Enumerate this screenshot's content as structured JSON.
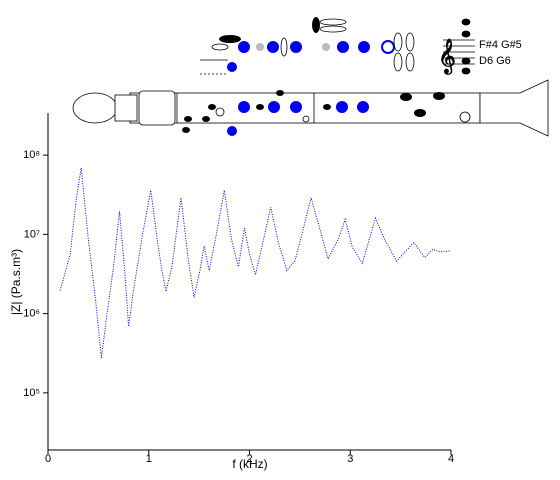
{
  "chart_data": {
    "type": "line",
    "x_label": "f (kHz)",
    "y_label": "|Z| (Pa.s.m³)",
    "annotations": [
      "F#4 G#5",
      "D6 G6"
    ],
    "log_y": true,
    "xlim": [
      0,
      4
    ],
    "xticks": [
      0,
      1,
      2,
      3,
      4
    ],
    "ylim": [
      19000,
      340000000
    ],
    "yticks": [
      {
        "value": 100000,
        "label": "10⁵"
      },
      {
        "value": 1000000,
        "label": "10⁶"
      },
      {
        "value": 10000000,
        "label": "10⁷"
      },
      {
        "value": 100000000,
        "label": "10⁸"
      }
    ],
    "x": [
      0.12,
      0.22,
      0.28,
      0.33,
      0.4,
      0.47,
      0.53,
      0.58,
      0.65,
      0.71,
      0.76,
      0.8,
      0.85,
      0.93,
      1.02,
      1.09,
      1.13,
      1.17,
      1.23,
      1.32,
      1.39,
      1.45,
      1.51,
      1.55,
      1.6,
      1.68,
      1.75,
      1.82,
      1.89,
      1.95,
      2.0,
      2.06,
      2.14,
      2.21,
      2.29,
      2.37,
      2.45,
      2.52,
      2.61,
      2.7,
      2.78,
      2.88,
      2.95,
      3.02,
      3.12,
      3.25,
      3.34,
      3.46,
      3.63,
      3.74,
      3.82,
      3.89,
      3.99
    ],
    "series": [
      {
        "color": "#0000cc",
        "values": [
          1950000,
          5600000,
          27500000,
          69000000,
          8700000,
          1550000,
          275000,
          870000,
          3900000,
          19500000,
          3600000,
          690000,
          2000000,
          8700000,
          36000000,
          7600000,
          3600000,
          1900000,
          3900000,
          29000000,
          5100000,
          1600000,
          3600000,
          7100000,
          3500000,
          11500000,
          36000000,
          8700000,
          3900000,
          12000000,
          5600000,
          3100000,
          8700000,
          22000000,
          7600000,
          3500000,
          4600000,
          10000000,
          29000000,
          11500000,
          4900000,
          8700000,
          15500000,
          6900000,
          4300000,
          16000000,
          8700000,
          4600000,
          7900000,
          5100000,
          6500000,
          6000000,
          6200000
        ]
      }
    ]
  }
}
